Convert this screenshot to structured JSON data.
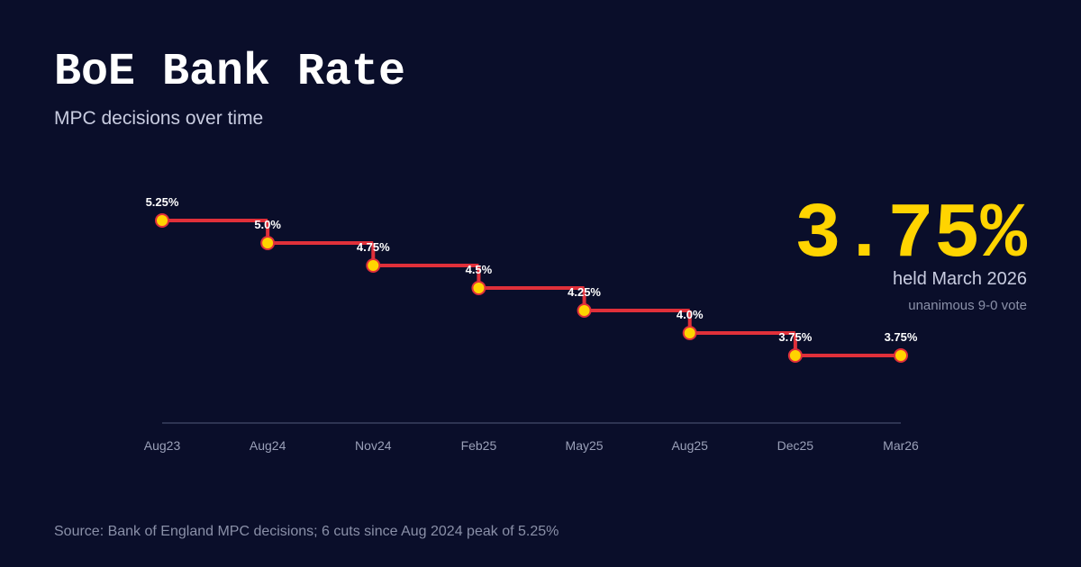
{
  "chart_data": {
    "type": "line",
    "step": true,
    "title": "BoE Bank Rate",
    "subtitle": "MPC decisions over time",
    "headline": "3.75%",
    "headline_note": "held March 2026",
    "headline_subnote": "unanimous 9-0 vote",
    "source": "Source: Bank of England MPC decisions; 6 cuts since Aug 2024 peak of 5.25%",
    "categories": [
      "Aug23",
      "Aug24",
      "Nov24",
      "Feb25",
      "May25",
      "Aug25",
      "Dec25",
      "Mar26"
    ],
    "values": [
      5.25,
      5.0,
      4.75,
      4.5,
      4.25,
      4.0,
      3.75,
      3.75
    ],
    "value_labels": [
      "5.25%",
      "5.0%",
      "4.75%",
      "4.5%",
      "4.25%",
      "4.0%",
      "3.75%",
      "3.75%"
    ],
    "color": "#e0303a",
    "marker_color": "#ffd400",
    "headline_color": "#ffd400"
  }
}
